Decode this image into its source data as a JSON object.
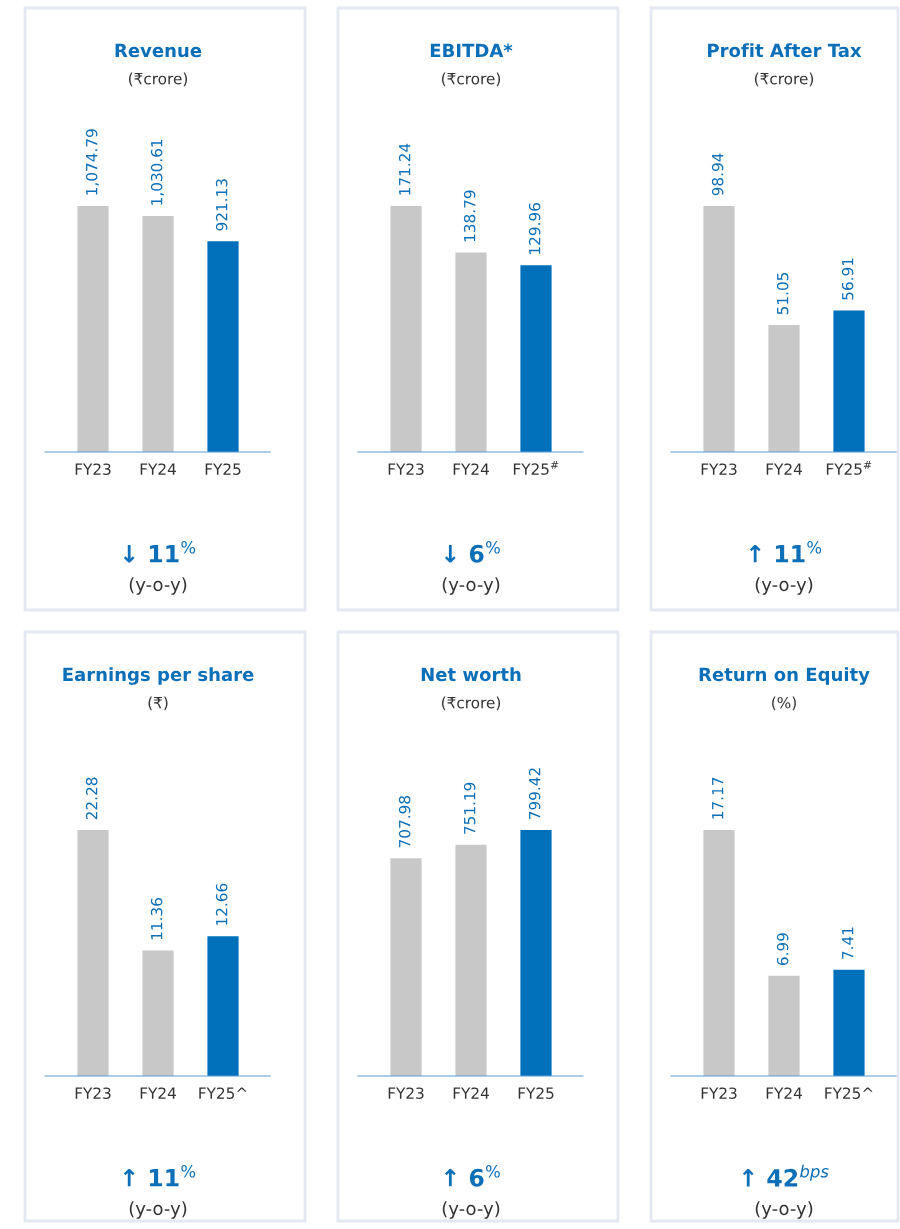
{
  "chart_data": [
    {
      "type": "bar",
      "title": "Revenue",
      "subtitle": "(₹crore)",
      "categories": [
        "FY23",
        "FY24",
        "FY25"
      ],
      "values": [
        1074.79,
        1030.61,
        921.13
      ],
      "colors": [
        "#c8c8c8",
        "#c8c8c8",
        "#0070bb"
      ],
      "value_labels": [
        "1,074.79",
        "1,030.61",
        "921.13"
      ],
      "annotations": [
        "↓ 11$^{%}$",
        "(y-o-y)"
      ]
    },
    {
      "type": "bar",
      "title": "EBITDA*",
      "subtitle": "(₹crore)",
      "categories": [
        "FY23",
        "FY24",
        "FY25$^{#}$"
      ],
      "values": [
        171.24,
        138.79,
        129.96
      ],
      "colors": [
        "#c8c8c8",
        "#c8c8c8",
        "#0070bb"
      ],
      "data_labels": true,
      "annotations": [
        "↓ 6$^{%}$",
        "(y-o-y)"
      ]
    },
    {
      "type": "bar",
      "title": "Profit After Tax",
      "subtitle": "(₹crore)",
      "categories": [
        "FY23",
        "FY24",
        "FY25$^{#}$"
      ],
      "values": [
        98.94,
        51.05,
        56.91
      ],
      "colors": [
        "#c8c8c8",
        "#c8c8c8",
        "#0070bb"
      ],
      "data_labels": true,
      "annotations": [
        "↑ 11$^{%}$",
        "(y-o-y)"
      ]
    },
    {
      "type": "bar",
      "title": "Earnings per share",
      "subtitle": "(₹)",
      "categories": [
        "FY23",
        "FY24",
        "FY25^"
      ],
      "values": [
        22.28,
        11.36,
        12.66
      ],
      "colors": [
        "#c8c8c8",
        "#c8c8c8",
        "#0070bb"
      ],
      "data_labels": true,
      "annotations": [
        "↑ 11$^{%}$",
        "(y-o-y)"
      ]
    },
    {
      "type": "bar",
      "title": "Net worth",
      "subtitle": "(₹crore)",
      "categories": [
        "FY23",
        "FY24",
        "FY25"
      ],
      "values": [
        707.98,
        751.19,
        799.42
      ],
      "colors": [
        "#c8c8c8",
        "#c8c8c8",
        "#0070bb"
      ],
      "data_labels": true,
      "annotations": [
        "↑ 6$^{%}$",
        "(y-o-y)"
      ]
    },
    {
      "type": "bar",
      "title": "Return on Equity",
      "subtitle": "(%)",
      "categories": [
        "FY23",
        "FY24",
        "FY25^"
      ],
      "values": [
        17.17,
        6.99,
        7.41
      ],
      "colors": [
        "#c8c8c8",
        "#c8c8c8",
        "#0070bb"
      ],
      "data_labels": true,
      "annotations": [
        "↑ 42$^{bps}$",
        "(y-o-y)"
      ]
    }
  ]
}
